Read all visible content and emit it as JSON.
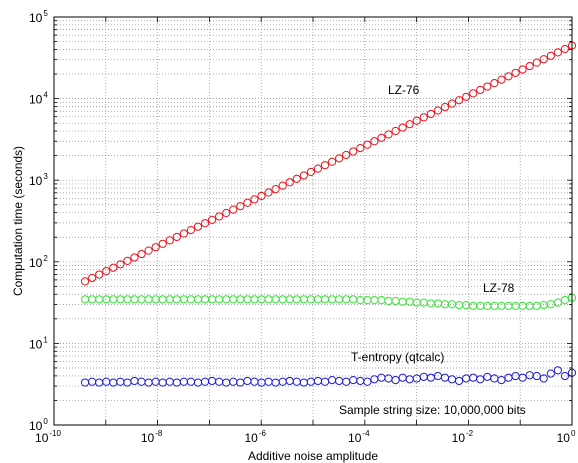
{
  "chart_data": {
    "type": "scatter",
    "xlabel": "Additive noise amplitude",
    "ylabel": "Computation time (seconds)",
    "xscale": "log",
    "yscale": "log",
    "xlim": [
      1e-10,
      1
    ],
    "ylim": [
      1,
      100000
    ],
    "grid": true,
    "marker": "open-circle",
    "x_ticks": [
      {
        "base": "10",
        "exp": "-10"
      },
      {
        "base": "10",
        "exp": "-8"
      },
      {
        "base": "10",
        "exp": "-6"
      },
      {
        "base": "10",
        "exp": "-4"
      },
      {
        "base": "10",
        "exp": "-2"
      },
      {
        "base": "10",
        "exp": "0"
      }
    ],
    "y_ticks": [
      {
        "base": "10",
        "exp": "0"
      },
      {
        "base": "10",
        "exp": "1"
      },
      {
        "base": "10",
        "exp": "2"
      },
      {
        "base": "10",
        "exp": "3"
      },
      {
        "base": "10",
        "exp": "4"
      },
      {
        "base": "10",
        "exp": "5"
      }
    ],
    "x_log_range": [
      -9.4,
      0
    ],
    "series": [
      {
        "name": "LZ-76",
        "color": "#e8141e",
        "log_y_start": 1.76,
        "log_y_end": 4.65,
        "log_y_offsets": [
          0,
          0,
          0,
          0,
          0,
          0,
          0,
          0,
          0,
          0,
          0,
          0,
          0,
          0,
          0,
          0,
          0,
          0,
          0,
          0,
          0,
          0,
          0,
          0,
          0,
          0,
          0,
          0,
          0,
          0,
          0,
          0,
          0,
          0,
          0,
          0,
          0,
          0,
          0,
          0,
          0,
          0,
          0,
          0,
          0,
          0,
          0,
          0,
          0,
          0,
          0,
          0,
          0,
          0,
          0,
          0,
          0,
          0,
          0,
          0,
          0,
          0,
          0,
          0,
          0,
          0,
          0,
          0,
          0,
          0
        ]
      },
      {
        "name": "LZ-78",
        "color": "#33e633",
        "log_y": [
          1.54,
          1.54,
          1.54,
          1.54,
          1.54,
          1.54,
          1.54,
          1.54,
          1.54,
          1.54,
          1.54,
          1.54,
          1.54,
          1.54,
          1.54,
          1.54,
          1.54,
          1.54,
          1.54,
          1.54,
          1.54,
          1.54,
          1.54,
          1.54,
          1.54,
          1.54,
          1.54,
          1.54,
          1.54,
          1.54,
          1.54,
          1.54,
          1.54,
          1.54,
          1.54,
          1.54,
          1.54,
          1.54,
          1.54,
          1.53,
          1.53,
          1.53,
          1.53,
          1.52,
          1.52,
          1.51,
          1.51,
          1.5,
          1.5,
          1.49,
          1.49,
          1.48,
          1.48,
          1.47,
          1.47,
          1.46,
          1.46,
          1.46,
          1.46,
          1.46,
          1.46,
          1.46,
          1.46,
          1.46,
          1.46,
          1.47,
          1.48,
          1.5,
          1.53,
          1.56
        ]
      },
      {
        "name": "T-entropy (qtcalc)",
        "color": "#1e1ed2",
        "log_y": [
          0.52,
          0.53,
          0.52,
          0.53,
          0.52,
          0.53,
          0.52,
          0.54,
          0.53,
          0.52,
          0.53,
          0.52,
          0.53,
          0.52,
          0.53,
          0.53,
          0.52,
          0.53,
          0.54,
          0.53,
          0.52,
          0.53,
          0.52,
          0.54,
          0.53,
          0.52,
          0.53,
          0.52,
          0.53,
          0.54,
          0.53,
          0.52,
          0.53,
          0.54,
          0.53,
          0.55,
          0.54,
          0.53,
          0.55,
          0.54,
          0.53,
          0.56,
          0.58,
          0.57,
          0.55,
          0.58,
          0.56,
          0.57,
          0.59,
          0.58,
          0.6,
          0.58,
          0.56,
          0.54,
          0.57,
          0.58,
          0.56,
          0.59,
          0.57,
          0.55,
          0.58,
          0.6,
          0.58,
          0.61,
          0.6,
          0.57,
          0.63,
          0.67,
          0.6,
          0.64
        ]
      }
    ],
    "annotations": [
      "LZ-76",
      "LZ-78",
      "T-entropy (qtcalc)",
      "Sample string size: 10,000,000 bits"
    ]
  }
}
